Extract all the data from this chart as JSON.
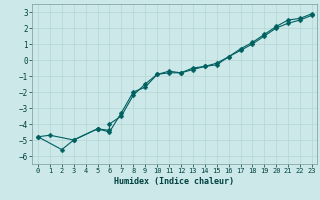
{
  "xlabel": "Humidex (Indice chaleur)",
  "ylabel": "",
  "bg_color": "#cce8e8",
  "line_color": "#006060",
  "grid_color": "#b8d8d8",
  "xlim": [
    -0.5,
    23.4
  ],
  "ylim": [
    -6.5,
    3.5
  ],
  "xticks": [
    0,
    1,
    2,
    3,
    4,
    5,
    6,
    7,
    8,
    9,
    10,
    11,
    12,
    13,
    14,
    15,
    16,
    17,
    18,
    19,
    20,
    21,
    22,
    23
  ],
  "yticks": [
    -6,
    -5,
    -4,
    -3,
    -2,
    -1,
    0,
    1,
    2,
    3
  ],
  "series1_x": [
    0,
    1,
    3,
    5,
    5,
    6,
    7,
    8,
    9,
    10,
    11,
    12,
    13,
    14,
    15,
    16,
    17,
    18,
    19,
    20,
    21,
    22,
    23
  ],
  "series1_y": [
    -4.8,
    -4.7,
    -5.0,
    -4.3,
    -4.3,
    -4.5,
    -3.3,
    -2.0,
    -1.7,
    -0.9,
    -0.8,
    -0.8,
    -0.6,
    -0.4,
    -0.3,
    0.2,
    0.6,
    1.0,
    1.5,
    2.0,
    2.3,
    2.5,
    2.8
  ],
  "series2_x": [
    0,
    2,
    3,
    5,
    6,
    6,
    7,
    8,
    9,
    10,
    11,
    12,
    13,
    14,
    15,
    16,
    17,
    18,
    19,
    20,
    21,
    22,
    23
  ],
  "series2_y": [
    -4.8,
    -5.6,
    -5.0,
    -4.3,
    -4.4,
    -4.0,
    -3.5,
    -2.2,
    -1.5,
    -0.9,
    -0.7,
    -0.8,
    -0.5,
    -0.4,
    -0.2,
    0.2,
    0.7,
    1.1,
    1.6,
    2.1,
    2.5,
    2.6,
    2.9
  ],
  "marker": "D",
  "markersize": 2.5,
  "linewidth": 0.8,
  "tick_fontsize": 5.0,
  "xlabel_fontsize": 6.0
}
